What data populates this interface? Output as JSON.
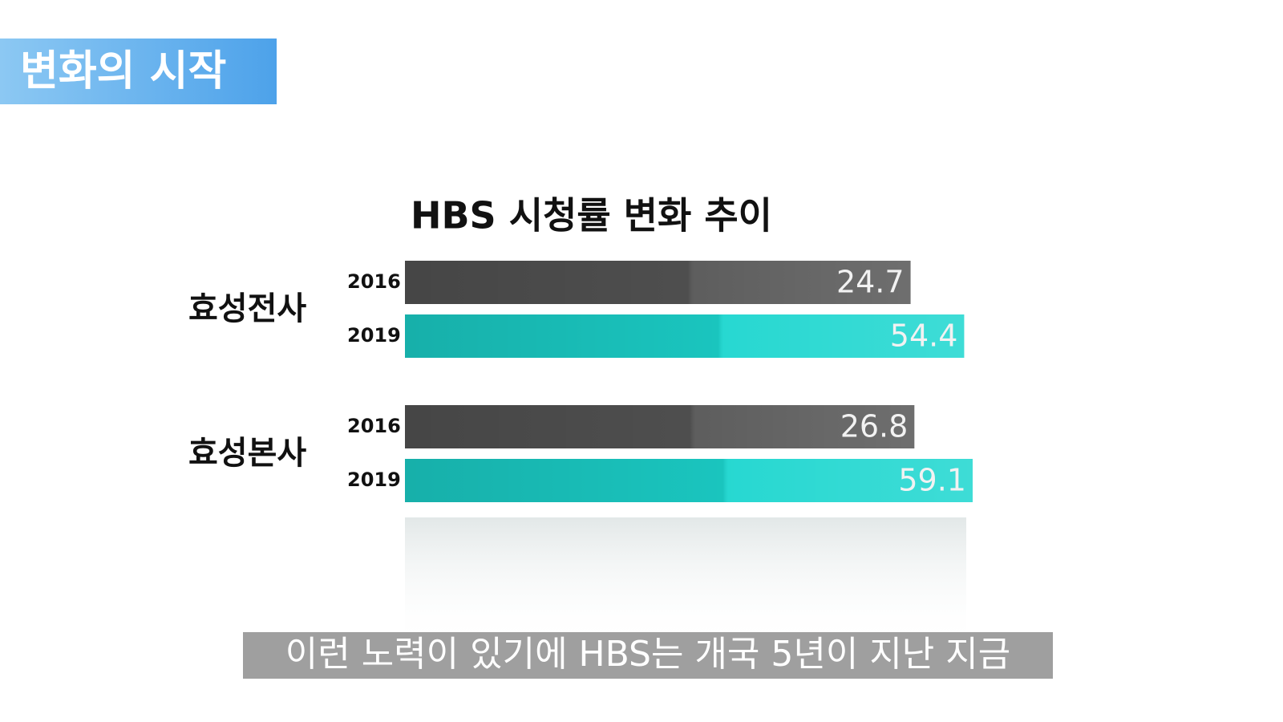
{
  "header": "변화의 시작",
  "caption": "이런 노력이 있기에 HBS는 개국 5년이 지난 지금",
  "chart_data": {
    "type": "bar",
    "orientation": "horizontal",
    "title": "HBS 시청률 변화 추이",
    "categories": [
      "효성전사",
      "효성본사"
    ],
    "series": [
      {
        "name": "2016",
        "color": "#555555",
        "values": [
          24.7,
          26.8
        ]
      },
      {
        "name": "2019",
        "color": "#1cd6cf",
        "values": [
          54.4,
          59.1
        ]
      }
    ]
  }
}
